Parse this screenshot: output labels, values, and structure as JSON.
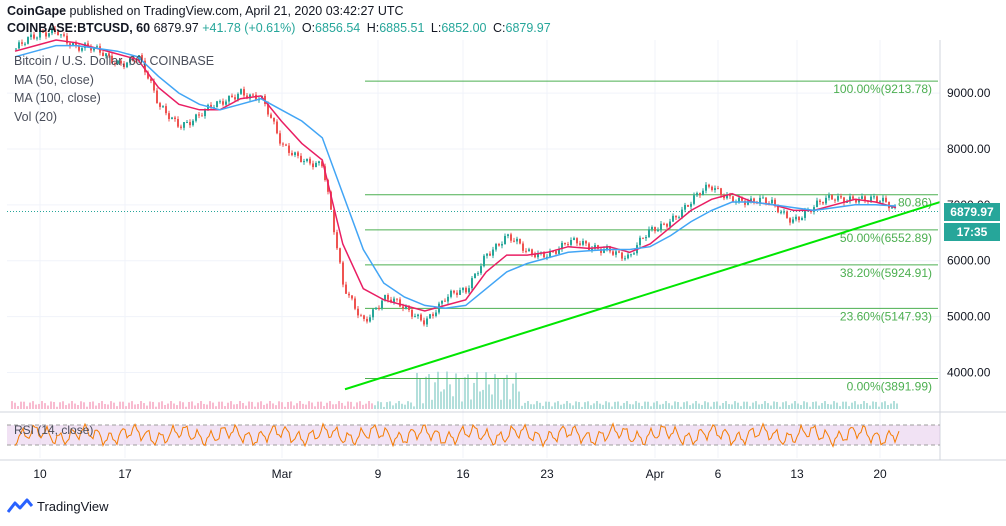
{
  "header": {
    "publisher": "CoinGape published on TradingView.com, April 21, 2020 03:42:27 UTC",
    "symbol": "COINBASE:BTCUSD, 60",
    "last": "6879.97",
    "change": "+41.78 (+0.61%)",
    "open_label": "O:",
    "open": "6856.54",
    "high_label": "H:",
    "high": "6885.51",
    "low_label": "L:",
    "low": "6852.00",
    "close_label": "C:",
    "close": "6879.97"
  },
  "legend": {
    "series_title": "Bitcoin / U.S. Dollar, 60, COINBASE",
    "ma50": "MA (50, close)",
    "ma100": "MA (100, close)",
    "vol": "Vol (20)"
  },
  "rsi": {
    "label": "RSI (14, close)"
  },
  "price_tags": {
    "price": "6879.97",
    "countdown": "17:35"
  },
  "brand": {
    "name": "TradingView"
  },
  "colors": {
    "up": "#26a69a",
    "down": "#ef5350",
    "ma50": "#e91e63",
    "ma100": "#42a5f5",
    "fib": "#4caf50",
    "trend": "#00e600",
    "rsi": "#f57c00",
    "rsi_band": "#e1bee7"
  },
  "chart_data": {
    "type": "line",
    "title": "Bitcoin / U.S. Dollar, 60, COINBASE",
    "ylim": [
      3400,
      9950
    ],
    "y_ticks": [
      4000,
      5000,
      6000,
      7000,
      8000,
      9000
    ],
    "y_tick_labels": [
      "4000.00",
      "5000.00",
      "6000.00",
      "7000.00",
      "8000.00",
      "9000.00"
    ],
    "x_tick_labels": [
      "10",
      "17",
      "Mar",
      "9",
      "16",
      "23",
      "Apr",
      "6",
      "13",
      "20"
    ],
    "x": [
      "Feb 7",
      "Feb 10",
      "Feb 13",
      "Feb 15",
      "Feb 17",
      "Feb 20",
      "Feb 22",
      "Feb 25",
      "Feb 27",
      "Mar 1",
      "Mar 4",
      "Mar 6",
      "Mar 8",
      "Mar 9",
      "Mar 10",
      "Mar 11",
      "Mar 12",
      "Mar 13",
      "Mar 14",
      "Mar 15",
      "Mar 16",
      "Mar 17",
      "Mar 18",
      "Mar 19",
      "Mar 20",
      "Mar 21",
      "Mar 23",
      "Mar 25",
      "Mar 27",
      "Mar 29",
      "Mar 30",
      "Apr 1",
      "Apr 3",
      "Apr 5",
      "Apr 6",
      "Apr 7",
      "Apr 9",
      "Apr 11",
      "Apr 13",
      "Apr 15",
      "Apr 17",
      "Apr 18",
      "Apr 20",
      "Apr 21"
    ],
    "series": [
      {
        "name": "BTCUSD",
        "values": [
          9800,
          9950,
          10200,
          9800,
          9700,
          9600,
          9650,
          8700,
          8500,
          8600,
          8750,
          9100,
          8900,
          8000,
          7900,
          7700,
          5500,
          5000,
          5300,
          5100,
          5000,
          5300,
          5400,
          6200,
          6400,
          6100,
          6200,
          6300,
          6200,
          6300,
          6000,
          6500,
          6800,
          7000,
          7300,
          7200,
          7000,
          7000,
          6800,
          6900,
          7100,
          7200,
          7050,
          6879.97
        ]
      },
      {
        "name": "MA (50, close)",
        "values": [
          9750,
          9850,
          9950,
          9900,
          9800,
          9700,
          9600,
          9100,
          8800,
          8700,
          8700,
          8900,
          8950,
          8500,
          8100,
          7800,
          6300,
          5500,
          5300,
          5200,
          5100,
          5200,
          5300,
          5800,
          6100,
          6100,
          6150,
          6250,
          6220,
          6250,
          6150,
          6300,
          6600,
          6900,
          7100,
          7200,
          7050,
          7000,
          6900,
          6900,
          7000,
          7100,
          7050,
          6950
        ]
      },
      {
        "name": "MA (100, close)",
        "values": [
          9650,
          9750,
          9850,
          9850,
          9800,
          9750,
          9650,
          9300,
          9000,
          8800,
          8700,
          8800,
          8900,
          8700,
          8500,
          8200,
          7200,
          6200,
          5600,
          5350,
          5200,
          5150,
          5200,
          5500,
          5800,
          5950,
          6050,
          6150,
          6180,
          6200,
          6200,
          6250,
          6450,
          6700,
          6900,
          7050,
          7050,
          7000,
          6950,
          6900,
          6950,
          7000,
          7000,
          6980
        ]
      }
    ],
    "fib_levels": [
      {
        "label": "100.00%(9213.78)",
        "value": 9213.78
      },
      {
        "label": "61.80%(7180.86)",
        "value": 7180.86
      },
      {
        "label": "50.00%(6552.89)",
        "value": 6552.89
      },
      {
        "label": "38.20%(5924.91)",
        "value": 5924.91
      },
      {
        "label": "23.60%(5147.93)",
        "value": 5147.93
      },
      {
        "label": "0.00%(3891.99)",
        "value": 3891.99
      }
    ],
    "fib_visible_labels": [
      "100.00%(9213.78)",
      "80.86)",
      "50.00%(6552.89)",
      "38.20%(5924.91)",
      "23.60%(5147.93)",
      "0.00%(3891.99)"
    ],
    "trendline": {
      "from": [
        "Mar 7",
        3700
      ],
      "to": [
        "Apr 21",
        7050
      ]
    },
    "rsi_bands": [
      70,
      30
    ],
    "legend": [
      "MA (50, close)",
      "MA (100, close)",
      "Vol (20)",
      "RSI (14, close)"
    ]
  }
}
